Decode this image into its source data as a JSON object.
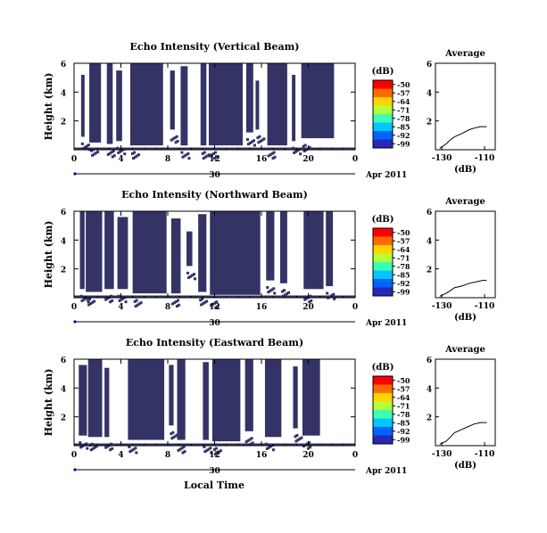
{
  "figure": {
    "x_axis_title": "Local Time",
    "date_label": "Apr 2011",
    "day_label": "30",
    "x_ticks": [
      "0",
      "4",
      "8",
      "12",
      "16",
      "20",
      "0"
    ]
  },
  "colorbar": {
    "unit": "(dB)",
    "ticks": [
      "-50",
      "-57",
      "-64",
      "-71",
      "-78",
      "-85",
      "-92",
      "-99"
    ],
    "colors": [
      "#ff0000",
      "#ff6a00",
      "#ffd400",
      "#b4ff3c",
      "#3cffb4",
      "#00c8ff",
      "#0064ff",
      "#2828b4"
    ]
  },
  "average_panel": {
    "title": "Average",
    "xlabel": "(dB)",
    "x_ticks": [
      "-130",
      "-110"
    ],
    "y_ticks": [
      "6",
      "4",
      "2"
    ]
  },
  "chart_data": [
    {
      "type": "heatmap",
      "title": "Echo Intensity (Vertical Beam)",
      "xlabel": "Local Time",
      "ylabel": "Height (km)",
      "xlim": [
        0,
        24
      ],
      "ylim": [
        0,
        6
      ],
      "y_ticks": [
        "6",
        "4",
        "2"
      ],
      "fill_color": "#333366",
      "echo_blocks": [
        {
          "start": 0.6,
          "end": 0.9,
          "top": 5.2,
          "bottom": 0.9
        },
        {
          "start": 1.3,
          "end": 2.3,
          "top": 6.0,
          "bottom": 0.5
        },
        {
          "start": 2.8,
          "end": 3.3,
          "top": 6.0,
          "bottom": 0.4
        },
        {
          "start": 3.6,
          "end": 4.1,
          "top": 5.5,
          "bottom": 0.6
        },
        {
          "start": 4.8,
          "end": 7.6,
          "top": 6.0,
          "bottom": 0.3
        },
        {
          "start": 8.2,
          "end": 8.6,
          "top": 5.5,
          "bottom": 1.4
        },
        {
          "start": 9.1,
          "end": 9.7,
          "top": 5.8,
          "bottom": 0.3
        },
        {
          "start": 10.8,
          "end": 11.3,
          "top": 6.0,
          "bottom": 0.3
        },
        {
          "start": 11.5,
          "end": 14.4,
          "top": 6.0,
          "bottom": 0.3
        },
        {
          "start": 14.7,
          "end": 15.3,
          "top": 6.0,
          "bottom": 1.2
        },
        {
          "start": 15.5,
          "end": 15.8,
          "top": 4.8,
          "bottom": 1.4
        },
        {
          "start": 16.5,
          "end": 18.2,
          "top": 6.0,
          "bottom": 0.3
        },
        {
          "start": 18.6,
          "end": 18.9,
          "top": 5.2,
          "bottom": 0.6
        },
        {
          "start": 19.4,
          "end": 22.2,
          "top": 6.0,
          "bottom": 0.8
        }
      ],
      "average_profile": [
        [
          -131,
          0.1
        ],
        [
          -128,
          0.4
        ],
        [
          -126,
          0.7
        ],
        [
          -124,
          0.9
        ],
        [
          -121,
          1.1
        ],
        [
          -117,
          1.4
        ],
        [
          -115,
          1.5
        ],
        [
          -112,
          1.6
        ],
        [
          -109,
          1.6
        ]
      ]
    },
    {
      "type": "heatmap",
      "title": "Echo Intensity (Northward Beam)",
      "xlabel": "Local Time",
      "ylabel": "Height (km)",
      "xlim": [
        0,
        24
      ],
      "ylim": [
        0,
        6
      ],
      "y_ticks": [
        "6",
        "4",
        "2"
      ],
      "fill_color": "#333366",
      "echo_blocks": [
        {
          "start": 0.5,
          "end": 0.9,
          "top": 6.0,
          "bottom": 0.6
        },
        {
          "start": 1.0,
          "end": 2.4,
          "top": 6.0,
          "bottom": 0.4
        },
        {
          "start": 2.6,
          "end": 3.4,
          "top": 6.0,
          "bottom": 0.6
        },
        {
          "start": 3.7,
          "end": 4.6,
          "top": 5.6,
          "bottom": 0.6
        },
        {
          "start": 5.0,
          "end": 7.9,
          "top": 6.0,
          "bottom": 0.3
        },
        {
          "start": 8.3,
          "end": 9.1,
          "top": 5.5,
          "bottom": 0.3
        },
        {
          "start": 9.6,
          "end": 10.1,
          "top": 4.6,
          "bottom": 2.2
        },
        {
          "start": 10.6,
          "end": 11.3,
          "top": 5.8,
          "bottom": 0.4
        },
        {
          "start": 11.6,
          "end": 15.9,
          "top": 6.0,
          "bottom": 0.2
        },
        {
          "start": 16.4,
          "end": 17.1,
          "top": 6.0,
          "bottom": 1.2
        },
        {
          "start": 17.6,
          "end": 18.2,
          "top": 6.0,
          "bottom": 1.0
        },
        {
          "start": 19.6,
          "end": 21.3,
          "top": 6.0,
          "bottom": 0.6
        },
        {
          "start": 21.5,
          "end": 22.1,
          "top": 6.0,
          "bottom": 0.8
        }
      ],
      "average_profile": [
        [
          -131,
          0.1
        ],
        [
          -128,
          0.3
        ],
        [
          -126,
          0.5
        ],
        [
          -124,
          0.7
        ],
        [
          -121,
          0.8
        ],
        [
          -117,
          1.0
        ],
        [
          -114,
          1.1
        ],
        [
          -111,
          1.2
        ],
        [
          -109,
          1.2
        ]
      ]
    },
    {
      "type": "heatmap",
      "title": "Echo Intensity (Eastward Beam)",
      "xlabel": "Local Time",
      "ylabel": "Height (km)",
      "xlim": [
        0,
        24
      ],
      "ylim": [
        0,
        6
      ],
      "y_ticks": [
        "6",
        "4",
        "2"
      ],
      "fill_color": "#333366",
      "echo_blocks": [
        {
          "start": 0.4,
          "end": 1.1,
          "top": 5.6,
          "bottom": 0.7
        },
        {
          "start": 1.2,
          "end": 2.4,
          "top": 6.0,
          "bottom": 0.6
        },
        {
          "start": 2.6,
          "end": 3.0,
          "top": 5.4,
          "bottom": 0.6
        },
        {
          "start": 4.6,
          "end": 7.7,
          "top": 6.0,
          "bottom": 0.4
        },
        {
          "start": 8.1,
          "end": 8.5,
          "top": 5.6,
          "bottom": 1.4
        },
        {
          "start": 8.8,
          "end": 9.5,
          "top": 6.0,
          "bottom": 0.4
        },
        {
          "start": 11.0,
          "end": 11.5,
          "top": 5.8,
          "bottom": 0.4
        },
        {
          "start": 11.8,
          "end": 14.2,
          "top": 6.0,
          "bottom": 0.3
        },
        {
          "start": 14.6,
          "end": 15.3,
          "top": 6.0,
          "bottom": 1.0
        },
        {
          "start": 16.3,
          "end": 17.7,
          "top": 6.0,
          "bottom": 0.6
        },
        {
          "start": 18.7,
          "end": 19.1,
          "top": 5.5,
          "bottom": 1.2
        },
        {
          "start": 19.5,
          "end": 21.0,
          "top": 6.0,
          "bottom": 0.7
        }
      ],
      "average_profile": [
        [
          -131,
          0.1
        ],
        [
          -128,
          0.3
        ],
        [
          -126,
          0.6
        ],
        [
          -124,
          0.9
        ],
        [
          -121,
          1.1
        ],
        [
          -118,
          1.3
        ],
        [
          -115,
          1.5
        ],
        [
          -112,
          1.6
        ],
        [
          -109,
          1.6
        ]
      ]
    }
  ]
}
